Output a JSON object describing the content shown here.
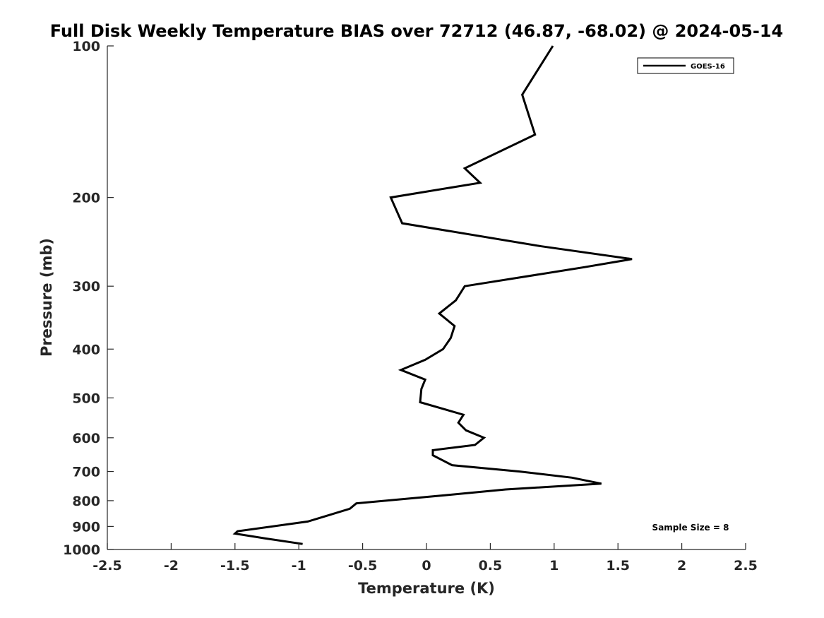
{
  "chart_data": {
    "type": "line",
    "title": "Full Disk Weekly Temperature BIAS over 72712 (46.87, -68.02) @ 2024-05-14",
    "xlabel": "Temperature (K)",
    "ylabel": "Pressure (mb)",
    "xlim": [
      -2.5,
      2.5
    ],
    "ylim": [
      100,
      1000
    ],
    "y_scale": "log",
    "y_reversed": true,
    "xticks": [
      -2.5,
      -2,
      -1.5,
      -1,
      -0.5,
      0,
      0.5,
      1,
      1.5,
      2,
      2.5
    ],
    "xtick_labels": [
      "-2.5",
      "-2",
      "-1.5",
      "-1",
      "-0.5",
      "0",
      "0.5",
      "1",
      "1.5",
      "2",
      "2.5"
    ],
    "yticks": [
      100,
      200,
      300,
      400,
      500,
      600,
      700,
      800,
      900,
      1000
    ],
    "ytick_labels": [
      "100",
      "200",
      "300",
      "400",
      "500",
      "600",
      "700",
      "800",
      "900",
      "1000"
    ],
    "grid": false,
    "legend_position": "top-right",
    "series": [
      {
        "name": "GOES-16",
        "color": "#000000",
        "points": [
          {
            "x": 0.99,
            "p": 100
          },
          {
            "x": 0.75,
            "p": 125
          },
          {
            "x": 0.85,
            "p": 150
          },
          {
            "x": 0.3,
            "p": 175
          },
          {
            "x": 0.42,
            "p": 187
          },
          {
            "x": -0.28,
            "p": 200
          },
          {
            "x": -0.19,
            "p": 225
          },
          {
            "x": 0.9,
            "p": 250
          },
          {
            "x": 1.61,
            "p": 265
          },
          {
            "x": 1.24,
            "p": 275
          },
          {
            "x": 0.3,
            "p": 300
          },
          {
            "x": 0.23,
            "p": 320
          },
          {
            "x": 0.1,
            "p": 340
          },
          {
            "x": 0.22,
            "p": 360
          },
          {
            "x": 0.19,
            "p": 380
          },
          {
            "x": 0.13,
            "p": 400
          },
          {
            "x": -0.01,
            "p": 420
          },
          {
            "x": -0.2,
            "p": 440
          },
          {
            "x": -0.01,
            "p": 460
          },
          {
            "x": -0.04,
            "p": 480
          },
          {
            "x": -0.05,
            "p": 510
          },
          {
            "x": 0.29,
            "p": 540
          },
          {
            "x": 0.25,
            "p": 560
          },
          {
            "x": 0.31,
            "p": 580
          },
          {
            "x": 0.45,
            "p": 600
          },
          {
            "x": 0.38,
            "p": 620
          },
          {
            "x": 0.05,
            "p": 635
          },
          {
            "x": 0.05,
            "p": 650
          },
          {
            "x": 0.2,
            "p": 680
          },
          {
            "x": 0.73,
            "p": 700
          },
          {
            "x": 1.14,
            "p": 720
          },
          {
            "x": 1.37,
            "p": 740
          },
          {
            "x": 0.62,
            "p": 760
          },
          {
            "x": 0.15,
            "p": 780
          },
          {
            "x": -0.55,
            "p": 810
          },
          {
            "x": -0.6,
            "p": 830
          },
          {
            "x": -0.8,
            "p": 860
          },
          {
            "x": -0.93,
            "p": 880
          },
          {
            "x": -1.48,
            "p": 920
          },
          {
            "x": -1.5,
            "p": 930
          },
          {
            "x": -1.27,
            "p": 950
          },
          {
            "x": -0.97,
            "p": 975
          }
        ]
      }
    ],
    "annotations": [
      {
        "text": "Sample Size = 8",
        "position": "bottom-right"
      }
    ]
  }
}
